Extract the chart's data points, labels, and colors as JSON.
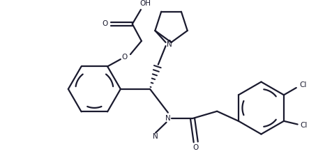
{
  "bg_color": "#ffffff",
  "line_color": "#1a1a2e",
  "bond_lw": 1.6,
  "figsize": [
    4.77,
    2.24
  ],
  "dpi": 100,
  "xlim": [
    0,
    9.5
  ],
  "ylim": [
    0,
    4.7
  ]
}
